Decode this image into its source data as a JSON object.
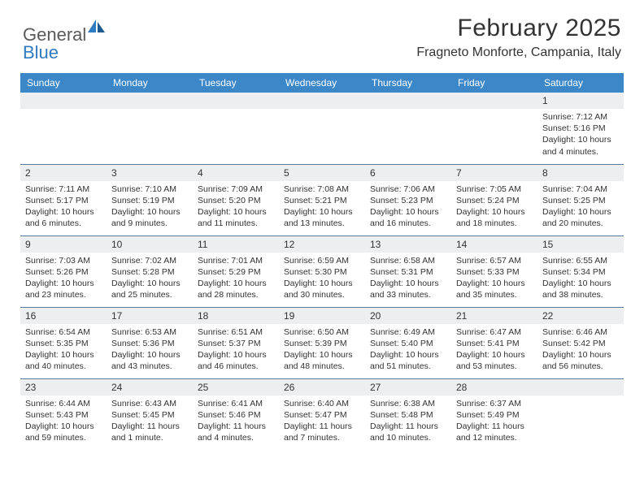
{
  "brand": {
    "part1": "General",
    "part2": "Blue"
  },
  "title": "February 2025",
  "location": "Fragneto Monforte, Campania, Italy",
  "colors": {
    "header_bg": "#3b87c8",
    "header_text": "#ffffff",
    "daynum_bg": "#eceeef",
    "border": "#5a7a99",
    "text": "#333333",
    "logo_gray": "#5a5a5a",
    "logo_blue": "#2f7bbf"
  },
  "weekdays": [
    "Sunday",
    "Monday",
    "Tuesday",
    "Wednesday",
    "Thursday",
    "Friday",
    "Saturday"
  ],
  "weeks": [
    [
      null,
      null,
      null,
      null,
      null,
      null,
      {
        "n": "1",
        "sr": "Sunrise: 7:12 AM",
        "ss": "Sunset: 5:16 PM",
        "dl": "Daylight: 10 hours and 4 minutes."
      }
    ],
    [
      {
        "n": "2",
        "sr": "Sunrise: 7:11 AM",
        "ss": "Sunset: 5:17 PM",
        "dl": "Daylight: 10 hours and 6 minutes."
      },
      {
        "n": "3",
        "sr": "Sunrise: 7:10 AM",
        "ss": "Sunset: 5:19 PM",
        "dl": "Daylight: 10 hours and 9 minutes."
      },
      {
        "n": "4",
        "sr": "Sunrise: 7:09 AM",
        "ss": "Sunset: 5:20 PM",
        "dl": "Daylight: 10 hours and 11 minutes."
      },
      {
        "n": "5",
        "sr": "Sunrise: 7:08 AM",
        "ss": "Sunset: 5:21 PM",
        "dl": "Daylight: 10 hours and 13 minutes."
      },
      {
        "n": "6",
        "sr": "Sunrise: 7:06 AM",
        "ss": "Sunset: 5:23 PM",
        "dl": "Daylight: 10 hours and 16 minutes."
      },
      {
        "n": "7",
        "sr": "Sunrise: 7:05 AM",
        "ss": "Sunset: 5:24 PM",
        "dl": "Daylight: 10 hours and 18 minutes."
      },
      {
        "n": "8",
        "sr": "Sunrise: 7:04 AM",
        "ss": "Sunset: 5:25 PM",
        "dl": "Daylight: 10 hours and 20 minutes."
      }
    ],
    [
      {
        "n": "9",
        "sr": "Sunrise: 7:03 AM",
        "ss": "Sunset: 5:26 PM",
        "dl": "Daylight: 10 hours and 23 minutes."
      },
      {
        "n": "10",
        "sr": "Sunrise: 7:02 AM",
        "ss": "Sunset: 5:28 PM",
        "dl": "Daylight: 10 hours and 25 minutes."
      },
      {
        "n": "11",
        "sr": "Sunrise: 7:01 AM",
        "ss": "Sunset: 5:29 PM",
        "dl": "Daylight: 10 hours and 28 minutes."
      },
      {
        "n": "12",
        "sr": "Sunrise: 6:59 AM",
        "ss": "Sunset: 5:30 PM",
        "dl": "Daylight: 10 hours and 30 minutes."
      },
      {
        "n": "13",
        "sr": "Sunrise: 6:58 AM",
        "ss": "Sunset: 5:31 PM",
        "dl": "Daylight: 10 hours and 33 minutes."
      },
      {
        "n": "14",
        "sr": "Sunrise: 6:57 AM",
        "ss": "Sunset: 5:33 PM",
        "dl": "Daylight: 10 hours and 35 minutes."
      },
      {
        "n": "15",
        "sr": "Sunrise: 6:55 AM",
        "ss": "Sunset: 5:34 PM",
        "dl": "Daylight: 10 hours and 38 minutes."
      }
    ],
    [
      {
        "n": "16",
        "sr": "Sunrise: 6:54 AM",
        "ss": "Sunset: 5:35 PM",
        "dl": "Daylight: 10 hours and 40 minutes."
      },
      {
        "n": "17",
        "sr": "Sunrise: 6:53 AM",
        "ss": "Sunset: 5:36 PM",
        "dl": "Daylight: 10 hours and 43 minutes."
      },
      {
        "n": "18",
        "sr": "Sunrise: 6:51 AM",
        "ss": "Sunset: 5:37 PM",
        "dl": "Daylight: 10 hours and 46 minutes."
      },
      {
        "n": "19",
        "sr": "Sunrise: 6:50 AM",
        "ss": "Sunset: 5:39 PM",
        "dl": "Daylight: 10 hours and 48 minutes."
      },
      {
        "n": "20",
        "sr": "Sunrise: 6:49 AM",
        "ss": "Sunset: 5:40 PM",
        "dl": "Daylight: 10 hours and 51 minutes."
      },
      {
        "n": "21",
        "sr": "Sunrise: 6:47 AM",
        "ss": "Sunset: 5:41 PM",
        "dl": "Daylight: 10 hours and 53 minutes."
      },
      {
        "n": "22",
        "sr": "Sunrise: 6:46 AM",
        "ss": "Sunset: 5:42 PM",
        "dl": "Daylight: 10 hours and 56 minutes."
      }
    ],
    [
      {
        "n": "23",
        "sr": "Sunrise: 6:44 AM",
        "ss": "Sunset: 5:43 PM",
        "dl": "Daylight: 10 hours and 59 minutes."
      },
      {
        "n": "24",
        "sr": "Sunrise: 6:43 AM",
        "ss": "Sunset: 5:45 PM",
        "dl": "Daylight: 11 hours and 1 minute."
      },
      {
        "n": "25",
        "sr": "Sunrise: 6:41 AM",
        "ss": "Sunset: 5:46 PM",
        "dl": "Daylight: 11 hours and 4 minutes."
      },
      {
        "n": "26",
        "sr": "Sunrise: 6:40 AM",
        "ss": "Sunset: 5:47 PM",
        "dl": "Daylight: 11 hours and 7 minutes."
      },
      {
        "n": "27",
        "sr": "Sunrise: 6:38 AM",
        "ss": "Sunset: 5:48 PM",
        "dl": "Daylight: 11 hours and 10 minutes."
      },
      {
        "n": "28",
        "sr": "Sunrise: 6:37 AM",
        "ss": "Sunset: 5:49 PM",
        "dl": "Daylight: 11 hours and 12 minutes."
      },
      null
    ]
  ]
}
